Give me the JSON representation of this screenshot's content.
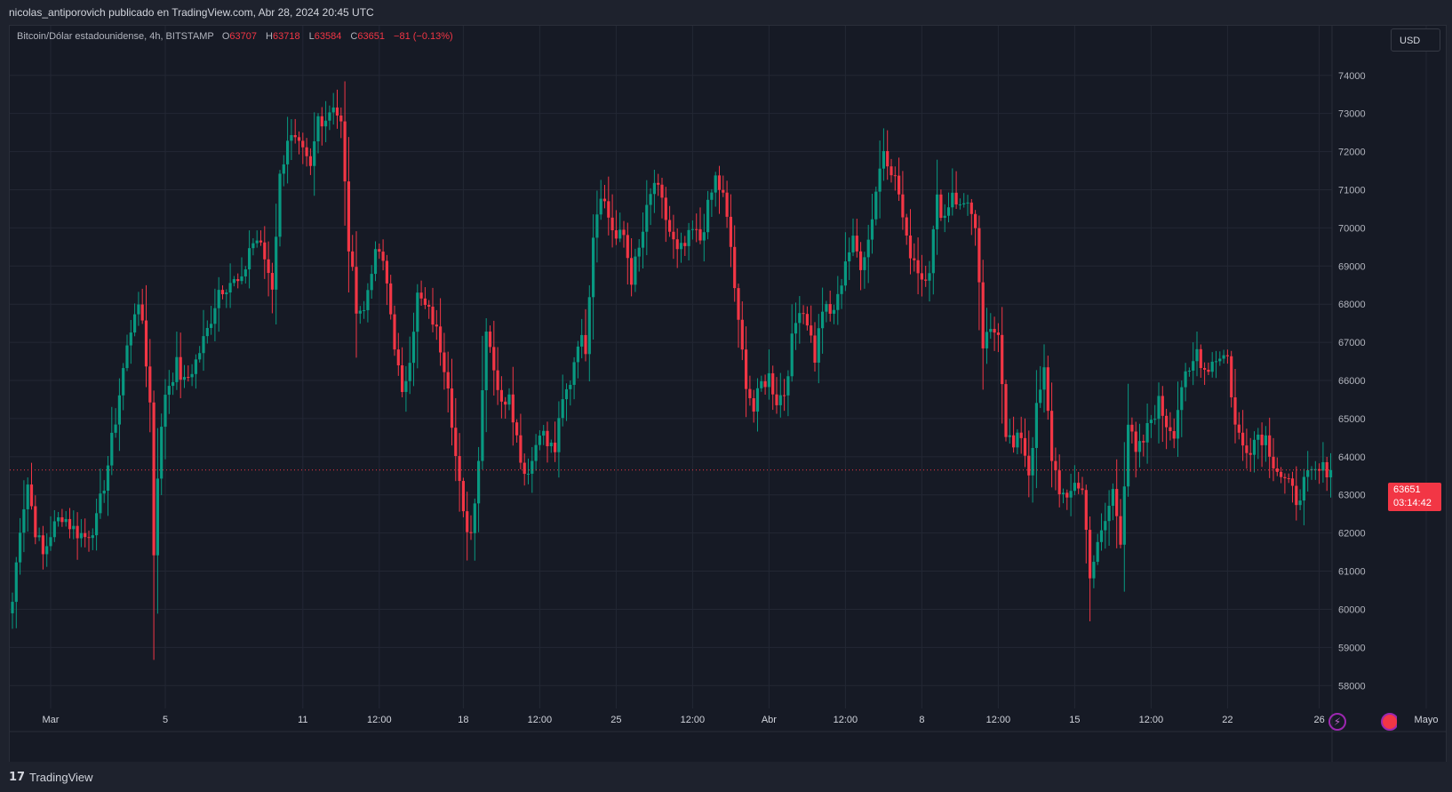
{
  "header": {
    "publish_line": "nicolas_antiporovich publicado en TradingView.com, Abr 28, 2024 20:45 UTC"
  },
  "legend": {
    "symbol": "Bitcoin/Dólar estadounidense, 4h, BITSTAMP",
    "o_label": "O",
    "o_value": "63707",
    "h_label": "H",
    "h_value": "63718",
    "l_label": "L",
    "l_value": "63584",
    "c_label": "C",
    "c_value": "63651",
    "change": "−81 (−0.13%)"
  },
  "currency_button": "USD",
  "last_price": {
    "value": "63651",
    "countdown": "03:14:42"
  },
  "footer": {
    "logo_mark": "17",
    "logo_text": "TradingView"
  },
  "icons": {
    "flash": "lightning-icon",
    "flag": "us-flag-icon"
  },
  "colors": {
    "up": "#089981",
    "down": "#f23645",
    "grid": "#232734",
    "axis_text": "#b2b5be",
    "background": "#161a25",
    "price_line": "#f23645"
  },
  "chart_data": {
    "type": "candlestick",
    "timeframe": "4h",
    "exchange": "BITSTAMP",
    "currency": "USD",
    "ylim": [
      57400,
      75300
    ],
    "yticks": [
      58000,
      59000,
      60000,
      61000,
      62000,
      63000,
      64000,
      65000,
      66000,
      67000,
      68000,
      69000,
      70000,
      71000,
      72000,
      73000,
      74000
    ],
    "xlabels": [
      "Mar",
      "5",
      "11",
      "12:00",
      "18",
      "12:00",
      "25",
      "12:00",
      "Abr",
      "12:00",
      "8",
      "12:00",
      "15",
      "12:00",
      "22",
      "26",
      "Mayo"
    ],
    "xlabel_index": [
      10,
      40,
      76,
      96,
      118,
      138,
      158,
      178,
      198,
      218,
      238,
      258,
      278,
      298,
      318,
      342,
      370
    ],
    "last_price": 63651,
    "grid": true,
    "candles_note": "Candles hand-sampled every 4h (OHLC omitted); keypoints approximate the visible closing path.",
    "path": [
      [
        0,
        60200
      ],
      [
        2,
        62200
      ],
      [
        4,
        63300
      ],
      [
        6,
        62100
      ],
      [
        8,
        61400
      ],
      [
        10,
        62000
      ],
      [
        13,
        62500
      ],
      [
        16,
        62100
      ],
      [
        19,
        61900
      ],
      [
        22,
        62300
      ],
      [
        25,
        63800
      ],
      [
        27,
        65000
      ],
      [
        29,
        66300
      ],
      [
        32,
        67900
      ],
      [
        34,
        67600
      ],
      [
        36,
        65400
      ],
      [
        37,
        61500
      ],
      [
        38,
        63600
      ],
      [
        40,
        65700
      ],
      [
        43,
        66400
      ],
      [
        45,
        65900
      ],
      [
        48,
        66500
      ],
      [
        51,
        67300
      ],
      [
        54,
        68400
      ],
      [
        57,
        68600
      ],
      [
        60,
        68500
      ],
      [
        62,
        69500
      ],
      [
        64,
        69700
      ],
      [
        66,
        69200
      ],
      [
        68,
        68500
      ],
      [
        70,
        71300
      ],
      [
        72,
        72400
      ],
      [
        74,
        72200
      ],
      [
        76,
        71900
      ],
      [
        78,
        71500
      ],
      [
        80,
        72900
      ],
      [
        82,
        72900
      ],
      [
        84,
        73300
      ],
      [
        86,
        72700
      ],
      [
        88,
        69500
      ],
      [
        90,
        68000
      ],
      [
        92,
        67800
      ],
      [
        94,
        69000
      ],
      [
        96,
        69400
      ],
      [
        98,
        68500
      ],
      [
        100,
        67000
      ],
      [
        102,
        65500
      ],
      [
        104,
        66700
      ],
      [
        106,
        68200
      ],
      [
        108,
        67900
      ],
      [
        110,
        67600
      ],
      [
        112,
        66900
      ],
      [
        114,
        66000
      ],
      [
        116,
        64000
      ],
      [
        118,
        62400
      ],
      [
        120,
        62000
      ],
      [
        122,
        64000
      ],
      [
        124,
        67500
      ],
      [
        126,
        66400
      ],
      [
        128,
        65300
      ],
      [
        130,
        65800
      ],
      [
        132,
        64500
      ],
      [
        134,
        63600
      ],
      [
        136,
        63900
      ],
      [
        138,
        64800
      ],
      [
        140,
        64300
      ],
      [
        142,
        64200
      ],
      [
        144,
        65400
      ],
      [
        146,
        66000
      ],
      [
        148,
        67100
      ],
      [
        150,
        66900
      ],
      [
        152,
        69900
      ],
      [
        154,
        71000
      ],
      [
        156,
        70300
      ],
      [
        158,
        69700
      ],
      [
        160,
        69800
      ],
      [
        162,
        68700
      ],
      [
        164,
        69400
      ],
      [
        166,
        70400
      ],
      [
        168,
        71200
      ],
      [
        170,
        70600
      ],
      [
        172,
        69900
      ],
      [
        174,
        69300
      ],
      [
        176,
        69500
      ],
      [
        178,
        69900
      ],
      [
        180,
        69700
      ],
      [
        182,
        70500
      ],
      [
        184,
        71300
      ],
      [
        186,
        70800
      ],
      [
        188,
        69500
      ],
      [
        190,
        67400
      ],
      [
        192,
        66000
      ],
      [
        194,
        65200
      ],
      [
        196,
        65900
      ],
      [
        198,
        66100
      ],
      [
        200,
        65500
      ],
      [
        202,
        65700
      ],
      [
        204,
        67000
      ],
      [
        206,
        68000
      ],
      [
        208,
        67600
      ],
      [
        210,
        66600
      ],
      [
        212,
        67900
      ],
      [
        214,
        67700
      ],
      [
        216,
        68100
      ],
      [
        218,
        69200
      ],
      [
        220,
        69600
      ],
      [
        222,
        69100
      ],
      [
        224,
        69700
      ],
      [
        226,
        71000
      ],
      [
        228,
        72100
      ],
      [
        230,
        71600
      ],
      [
        232,
        70900
      ],
      [
        234,
        69600
      ],
      [
        236,
        69200
      ],
      [
        238,
        68700
      ],
      [
        240,
        69000
      ],
      [
        242,
        70700
      ],
      [
        244,
        70300
      ],
      [
        246,
        71000
      ],
      [
        248,
        70500
      ],
      [
        250,
        70800
      ],
      [
        252,
        69800
      ],
      [
        254,
        66900
      ],
      [
        256,
        67200
      ],
      [
        258,
        67400
      ],
      [
        260,
        64700
      ],
      [
        262,
        64200
      ],
      [
        264,
        64600
      ],
      [
        266,
        63600
      ],
      [
        268,
        65200
      ],
      [
        270,
        66200
      ],
      [
        272,
        64000
      ],
      [
        274,
        63200
      ],
      [
        276,
        62700
      ],
      [
        278,
        63400
      ],
      [
        280,
        63100
      ],
      [
        282,
        61000
      ],
      [
        284,
        61600
      ],
      [
        286,
        62300
      ],
      [
        288,
        63100
      ],
      [
        290,
        61900
      ],
      [
        292,
        64900
      ],
      [
        294,
        64000
      ],
      [
        296,
        64400
      ],
      [
        298,
        65000
      ],
      [
        300,
        65400
      ],
      [
        302,
        64900
      ],
      [
        304,
        64700
      ],
      [
        306,
        65900
      ],
      [
        308,
        66100
      ],
      [
        310,
        66800
      ],
      [
        312,
        66300
      ],
      [
        314,
        66500
      ],
      [
        316,
        66700
      ],
      [
        318,
        66600
      ],
      [
        320,
        64800
      ],
      [
        322,
        64300
      ],
      [
        324,
        64300
      ],
      [
        326,
        64600
      ],
      [
        328,
        64500
      ],
      [
        330,
        63900
      ],
      [
        332,
        63500
      ],
      [
        334,
        63200
      ],
      [
        336,
        62900
      ],
      [
        338,
        63300
      ],
      [
        340,
        63500
      ],
      [
        342,
        63600
      ],
      [
        344,
        63700
      ],
      [
        345,
        63651
      ]
    ]
  }
}
